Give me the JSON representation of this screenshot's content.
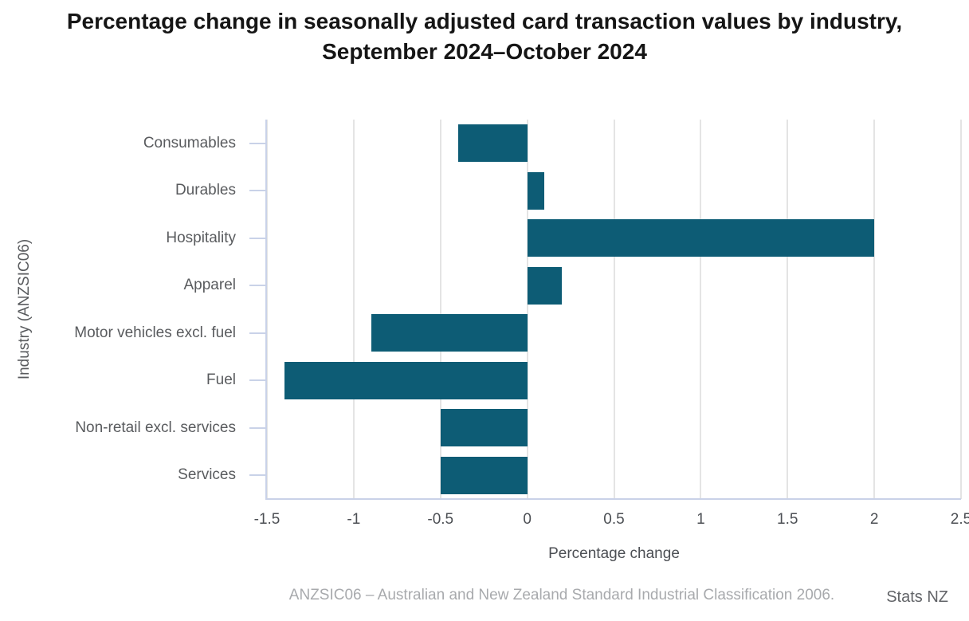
{
  "chart_data": {
    "type": "bar",
    "orientation": "horizontal",
    "title": "Percentage change in seasonally adjusted card transaction values by industry, September 2024–October 2024",
    "categories": [
      "Consumables",
      "Durables",
      "Hospitality",
      "Apparel",
      "Motor vehicles excl. fuel",
      "Fuel",
      "Non-retail excl. services",
      "Services"
    ],
    "values": [
      -0.4,
      0.1,
      2.0,
      0.2,
      -0.9,
      -1.4,
      -0.5,
      -0.5
    ],
    "xlabel": "Percentage change",
    "ylabel": "Industry (ANZSIC06)",
    "xlim": [
      -1.5,
      2.5
    ],
    "xticks": [
      -1.5,
      -1,
      -0.5,
      0,
      0.5,
      1,
      1.5,
      2,
      2.5
    ],
    "xtick_labels": [
      "-1.5",
      "-1",
      "-0.5",
      "0",
      "0.5",
      "1",
      "1.5",
      "2",
      "2.5"
    ],
    "grid": true,
    "legend": "none",
    "bar_color": "#0d5c75",
    "axis_color": "#c9d2e8",
    "gridline_color": "#e4e4e4"
  },
  "footer": {
    "note": "ANZSIC06 – Australian and New Zealand Standard Industrial Classification 2006.",
    "brand": "Stats NZ"
  }
}
